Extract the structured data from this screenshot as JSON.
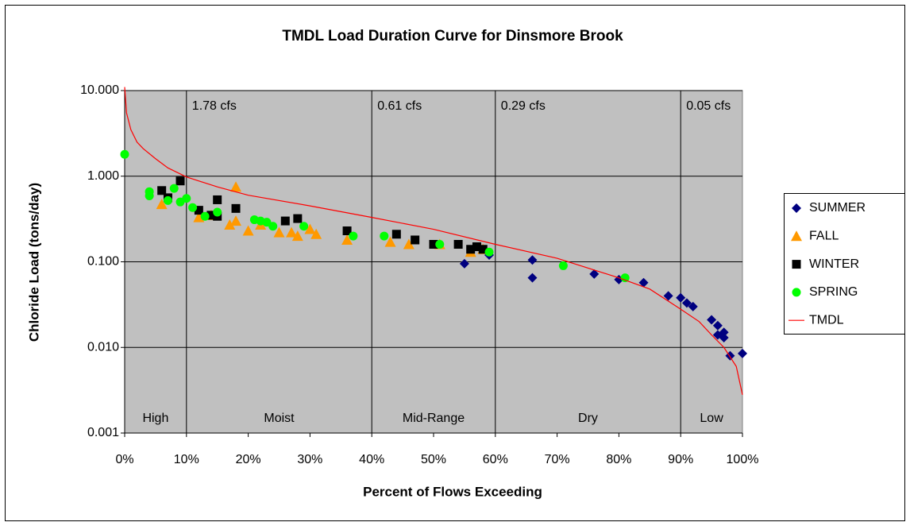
{
  "chart_data": {
    "type": "scatter",
    "title": "TMDL Load Duration Curve for Dinsmore Brook",
    "xlabel": "Percent of Flows Exceeding",
    "ylabel": "Chloride Load (tons/day)",
    "yscale": "log",
    "xlim": [
      0,
      100
    ],
    "ylim": [
      0.001,
      10
    ],
    "xticks": [
      {
        "value": 0,
        "label": "0%"
      },
      {
        "value": 10,
        "label": "10%"
      },
      {
        "value": 20,
        "label": "20%"
      },
      {
        "value": 30,
        "label": "30%"
      },
      {
        "value": 40,
        "label": "40%"
      },
      {
        "value": 50,
        "label": "50%"
      },
      {
        "value": 60,
        "label": "60%"
      },
      {
        "value": 70,
        "label": "70%"
      },
      {
        "value": 80,
        "label": "80%"
      },
      {
        "value": 90,
        "label": "90%"
      },
      {
        "value": 100,
        "label": "100%"
      }
    ],
    "yticks": [
      {
        "value": 0.001,
        "label": "0.001"
      },
      {
        "value": 0.01,
        "label": "0.010"
      },
      {
        "value": 0.1,
        "label": "0.100"
      },
      {
        "value": 1,
        "label": "1.000"
      },
      {
        "value": 10,
        "label": "10.000"
      }
    ],
    "grid": true,
    "background": "#c0c0c0",
    "legend": "right",
    "dividers": [
      {
        "x": 10,
        "label": "1.78 cfs"
      },
      {
        "x": 40,
        "label": "0.61 cfs"
      },
      {
        "x": 60,
        "label": "0.29 cfs"
      },
      {
        "x": 90,
        "label": "0.05 cfs"
      }
    ],
    "zones": [
      "High",
      "Moist",
      "Mid-Range",
      "Dry",
      "Low"
    ],
    "series": [
      {
        "name": "SUMMER",
        "color": "#000080",
        "marker": "diamond",
        "x": [
          55,
          59,
          66,
          66,
          76,
          80,
          84,
          88,
          90,
          91,
          92,
          95,
          96,
          96,
          97,
          97,
          98,
          100
        ],
        "values": [
          0.095,
          0.12,
          0.105,
          0.065,
          0.072,
          0.062,
          0.057,
          0.04,
          0.038,
          0.033,
          0.03,
          0.021,
          0.018,
          0.014,
          0.015,
          0.013,
          0.008,
          0.0085
        ]
      },
      {
        "name": "FALL",
        "color": "#ff9900",
        "marker": "triangle",
        "x": [
          6,
          12,
          14,
          17,
          18,
          18,
          20,
          22,
          25,
          27,
          28,
          30,
          31,
          36,
          43,
          46,
          51,
          56,
          58
        ],
        "values": [
          0.47,
          0.33,
          0.35,
          0.27,
          0.3,
          0.75,
          0.23,
          0.27,
          0.22,
          0.22,
          0.2,
          0.24,
          0.21,
          0.18,
          0.17,
          0.16,
          0.16,
          0.13,
          0.14
        ]
      },
      {
        "name": "WINTER",
        "color": "#000000",
        "marker": "square",
        "x": [
          6,
          7,
          9,
          12,
          14,
          15,
          15,
          18,
          26,
          28,
          36,
          44,
          47,
          50,
          54,
          56,
          57,
          58
        ],
        "values": [
          0.68,
          0.56,
          0.88,
          0.4,
          0.35,
          0.34,
          0.53,
          0.42,
          0.3,
          0.32,
          0.23,
          0.21,
          0.18,
          0.16,
          0.16,
          0.14,
          0.15,
          0.14
        ]
      },
      {
        "name": "SPRING",
        "color": "#00ff00",
        "marker": "circle",
        "x": [
          0,
          4,
          4,
          7,
          8,
          9,
          10,
          11,
          13,
          15,
          21,
          22,
          23,
          24,
          29,
          37,
          42,
          51,
          59,
          71,
          81
        ],
        "values": [
          1.8,
          0.66,
          0.59,
          0.52,
          0.72,
          0.5,
          0.55,
          0.43,
          0.34,
          0.38,
          0.31,
          0.3,
          0.29,
          0.26,
          0.26,
          0.2,
          0.2,
          0.16,
          0.13,
          0.09,
          0.065
        ]
      },
      {
        "name": "TMDL",
        "color": "#ff0000",
        "marker": "line",
        "x": [
          0,
          0.3,
          1,
          2,
          3,
          5,
          7,
          10,
          15,
          20,
          30,
          40,
          50,
          60,
          70,
          80,
          85,
          90,
          93,
          95,
          97,
          99,
          100
        ],
        "values": [
          11,
          5.5,
          3.5,
          2.5,
          2.1,
          1.6,
          1.25,
          0.98,
          0.75,
          0.6,
          0.45,
          0.33,
          0.24,
          0.16,
          0.11,
          0.065,
          0.048,
          0.028,
          0.02,
          0.014,
          0.01,
          0.006,
          0.0028
        ]
      }
    ]
  }
}
